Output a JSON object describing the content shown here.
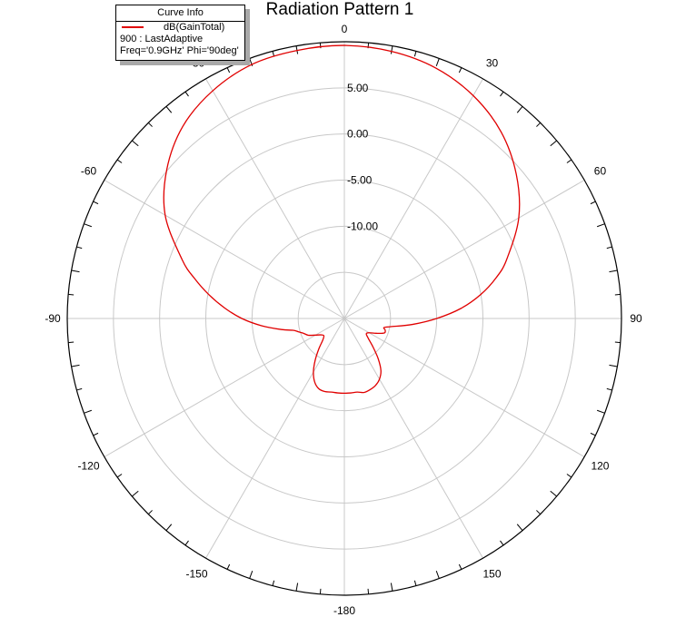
{
  "chart_data": {
    "type": "polar-line",
    "title": "Radiation Pattern 1",
    "legend": {
      "header": "Curve Info",
      "placement": "top-left",
      "entries": [
        {
          "series": "dB(GainTotal)",
          "lines": [
            "900 : LastAdaptive",
            "Freq='0.9GHz' Phi='90deg'"
          ],
          "color": "#e00000"
        }
      ]
    },
    "angular_axis": {
      "zero": "top",
      "direction": "clockwise",
      "labeled_angles": [
        0,
        30,
        60,
        90,
        120,
        150,
        180,
        -150,
        -120,
        -90,
        -60,
        -30
      ],
      "tick_labels": [
        "0",
        "30",
        "60",
        "90",
        "120",
        "150",
        "-180",
        "-150",
        "-120",
        "-90",
        "-60",
        "-30"
      ],
      "minor_tick_step": 5
    },
    "radial_axis": {
      "rlim": [
        -20,
        10
      ],
      "ticks": [
        -15,
        -10,
        -5,
        0,
        5,
        10
      ],
      "tick_labels": [
        "-10.00",
        "-5.00",
        "0.00",
        "5.00"
      ],
      "grid": true
    },
    "series": [
      {
        "name": "dB(GainTotal)",
        "color": "#e00000",
        "theta": [
          0,
          10,
          20,
          30,
          40,
          50,
          60,
          70,
          75,
          80,
          85,
          90,
          95,
          100,
          103,
          106,
          110,
          115,
          120,
          125,
          130,
          135,
          140,
          145,
          150,
          155,
          160,
          165,
          170,
          175,
          180,
          185,
          190,
          195,
          200,
          205,
          210,
          215,
          220,
          225,
          230,
          235,
          240,
          245,
          250,
          254,
          257,
          260,
          265,
          270,
          275,
          280,
          285,
          290,
          300,
          310,
          320,
          330,
          340,
          350,
          360
        ],
        "r": [
          9.6,
          9.4,
          8.9,
          7.9,
          6.4,
          4.3,
          1.8,
          -1.3,
          -3.0,
          -5.0,
          -7.3,
          -10.0,
          -12.6,
          -14.9,
          -15.6,
          -15.4,
          -15.4,
          -16.2,
          -16.9,
          -17.1,
          -16.6,
          -15.6,
          -14.3,
          -13.1,
          -12.4,
          -12.0,
          -11.8,
          -11.7,
          -11.9,
          -11.9,
          -11.9,
          -11.9,
          -11.9,
          -11.8,
          -11.9,
          -12.4,
          -13.3,
          -14.5,
          -15.7,
          -16.7,
          -17.1,
          -16.9,
          -16.4,
          -15.7,
          -15.3,
          -14.8,
          -14.3,
          -13.1,
          -11.0,
          -8.9,
          -7.0,
          -5.1,
          -3.2,
          -1.3,
          2.4,
          5.1,
          7.2,
          8.5,
          9.3,
          9.5,
          9.6
        ]
      }
    ]
  }
}
